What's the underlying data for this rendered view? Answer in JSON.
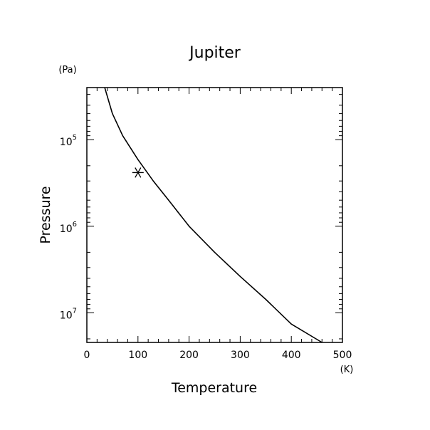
{
  "chart_data": {
    "type": "line",
    "title": "Jupiter",
    "xlabel": "Temperature",
    "ylabel": "Pressure",
    "x_unit": "(K)",
    "y_unit": "(Pa)",
    "xlim": [
      0,
      500
    ],
    "ylim": [
      25000,
      22000000
    ],
    "y_scale": "log",
    "y_inverted": true,
    "grid": false,
    "x_ticks": [
      0,
      100,
      200,
      300,
      400,
      500
    ],
    "y_ticks": [
      {
        "value": 100000,
        "base": "10",
        "exp": "5"
      },
      {
        "value": 1000000,
        "base": "10",
        "exp": "6"
      },
      {
        "value": 10000000,
        "base": "10",
        "exp": "7"
      }
    ],
    "series": [
      {
        "x": [
          35,
          50,
          70,
          100,
          130,
          160,
          200,
          250,
          300,
          350,
          400,
          460
        ],
        "y": [
          25000,
          50000,
          90000,
          170000,
          300000,
          500000,
          1000000,
          2000000,
          3800000,
          7000000,
          13500000,
          22000000
        ]
      }
    ],
    "markers": [
      {
        "symbol": "asterisk",
        "x": 100,
        "y": 240000
      }
    ]
  }
}
